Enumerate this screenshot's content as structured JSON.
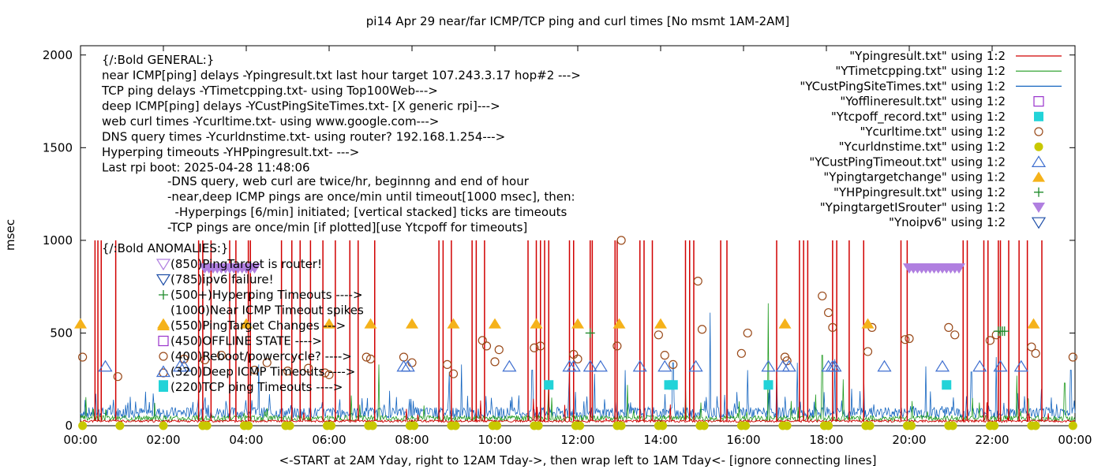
{
  "chart_data": {
    "type": "scatter",
    "title": "pi14 Apr 29  near/far ICMP/TCP ping and curl times [No msmt 1AM-2AM]",
    "xlabel": "<-START at 2AM Yday, right to 12AM Tday->, then wrap left to 1AM Tday<- [ignore connecting lines]",
    "ylabel": "msec",
    "xlim": [
      0,
      24
    ],
    "ylim": [
      0,
      2050
    ],
    "x_ticks": [
      "00:00",
      "02:00",
      "04:00",
      "06:00",
      "08:00",
      "10:00",
      "12:00",
      "14:00",
      "16:00",
      "18:00",
      "20:00",
      "22:00",
      "00:00"
    ],
    "y_ticks": [
      "0",
      "500",
      "1000",
      "1500",
      "2000"
    ],
    "legend_position": "top-right",
    "annotations": {
      "general": [
        "{/:Bold GENERAL:}",
        "near ICMP[ping] delays -Ypingresult.txt last hour target 107.243.3.17 hop#2 --->",
        "TCP ping delays -YTimetcpping.txt- using Top100Web--->",
        "deep ICMP[ping] delays -YCustPingSiteTimes.txt- [X generic rpi]--->",
        "web curl times -Ycurltime.txt- using www.google.com--->",
        "DNS query times -Ycurldnstime.txt- using router? 192.168.1.254--->",
        "Hyperping timeouts -YHPpingresult.txt- --->",
        "Last rpi boot: 2025-04-28 11:48:06"
      ],
      "notes": [
        "-DNS query, web curl are twice/hr, beginnng and end of hour",
        "-near,deep ICMP pings are once/min until timeout[1000 msec], then:",
        "  -Hyperpings [6/min] initiated; [vertical stacked] ticks are timeouts",
        "-TCP pings are once/min [if plotted][use Ytcpoff for timeouts]"
      ],
      "anomalies_title": "{/:Bold ANOMALIES:}",
      "anomalies": [
        {
          "text": "(850)PingTarget is router!",
          "color": "#b07fe0",
          "symbol": "tri-down-open"
        },
        {
          "text": "(785)ipv6 failure!",
          "color": "#1f4fa8",
          "symbol": "tri-down-open"
        },
        {
          "text": "(500+)Hyperping Timeouts ---->",
          "color": "#1e8b2a",
          "symbol": "plus"
        },
        {
          "text": "(1000)Near ICMP Timeout spikes",
          "color": "",
          "symbol": "none"
        },
        {
          "text": "(550)PingTarget Changes --->",
          "color": "#f5b21a",
          "symbol": "tri-up-filled"
        },
        {
          "text": "(450)OFFLINE STATE ---->",
          "color": "#9933cc",
          "symbol": "square-open"
        },
        {
          "text": "(400)Reboot/powercycle? ---->",
          "color": "#9a4a1a",
          "symbol": "circle-open"
        },
        {
          "text": "(320)Deep ICMP Timeouts ---->",
          "color": "#3f6fd0",
          "symbol": "tri-up-open"
        },
        {
          "text": "(220)TCP ping Timeouts ---->",
          "color": "#22d3d8",
          "symbol": "square-filled"
        }
      ]
    },
    "series": [
      {
        "name": "\"Ypingresult.txt\" using 1:2",
        "color": "#d10000",
        "style": "line",
        "baseline_ms": 25,
        "spike_x": [
          0.35,
          0.42,
          0.5,
          0.85,
          2.85,
          2.95,
          3.15,
          3.6,
          3.75,
          4.05,
          4.1,
          4.85,
          5.1,
          5.3,
          5.55,
          5.85,
          6.15,
          6.5,
          6.7,
          7.1,
          8.65,
          8.75,
          8.95,
          9.45,
          9.55,
          9.75,
          10.8,
          11.0,
          11.1,
          11.2,
          11.3,
          11.8,
          11.9,
          12.3,
          12.35,
          12.9,
          12.95,
          13.5,
          13.6,
          13.8,
          14.6,
          14.7,
          14.8,
          15.45,
          15.6,
          16.8,
          17.35,
          17.45,
          17.55,
          18.15,
          18.25,
          18.55,
          18.9,
          19.8,
          19.95,
          21.3,
          21.4,
          21.8,
          21.9,
          22.15,
          22.2,
          22.4,
          22.65,
          22.85,
          23.2
        ],
        "spike_y": 1000
      },
      {
        "name": "\"YTimetcpping.txt\" using 1:2",
        "color": "#1e9a1e",
        "style": "line",
        "baseline_ms": 40,
        "peaks": [
          [
            7.2,
            330
          ],
          [
            11.3,
            240
          ],
          [
            13.2,
            220
          ],
          [
            14.6,
            190
          ],
          [
            16.6,
            660
          ],
          [
            17.9,
            380
          ],
          [
            18.4,
            250
          ],
          [
            22.6,
            270
          ],
          [
            23.75,
            230
          ]
        ]
      },
      {
        "name": "\"YCustPingSiteTimes.txt\" using 1:2",
        "color": "#1565c0",
        "style": "line",
        "baseline_ms": 70,
        "peaks": [
          [
            4.3,
            330
          ],
          [
            8.9,
            290
          ],
          [
            9.2,
            330
          ],
          [
            10.9,
            300
          ],
          [
            11.8,
            280
          ],
          [
            12.4,
            280
          ],
          [
            13.15,
            300
          ],
          [
            14.3,
            340
          ],
          [
            15.2,
            610
          ],
          [
            16.1,
            300
          ],
          [
            16.8,
            280
          ],
          [
            17.3,
            340
          ],
          [
            18.2,
            360
          ],
          [
            18.9,
            250
          ],
          [
            20.4,
            320
          ],
          [
            21.5,
            290
          ],
          [
            22.1,
            370
          ],
          [
            23.9,
            300
          ]
        ]
      },
      {
        "name": "\"Yofflineresult.txt\" using 1:2",
        "color": "#9933cc",
        "style": "square-open",
        "points": []
      },
      {
        "name": "\"Ytcpoff_record.txt\" using 1:2",
        "color": "#22d3d8",
        "style": "square-filled",
        "points": [
          [
            2.0,
            220
          ],
          [
            11.3,
            220
          ],
          [
            14.2,
            220
          ],
          [
            14.3,
            220
          ],
          [
            16.6,
            220
          ],
          [
            20.9,
            220
          ]
        ]
      },
      {
        "name": "\"Ycurltime.txt\" using 1:2",
        "color": "#9a4a1a",
        "style": "circle-open",
        "points": [
          [
            0.05,
            370
          ],
          [
            0.9,
            265
          ],
          [
            2.0,
            285
          ],
          [
            2.5,
            360
          ],
          [
            3.0,
            355
          ],
          [
            3.4,
            380
          ],
          [
            4.2,
            300
          ],
          [
            4.5,
            340
          ],
          [
            5.0,
            295
          ],
          [
            5.5,
            310
          ],
          [
            5.9,
            285
          ],
          [
            6.0,
            275
          ],
          [
            6.9,
            370
          ],
          [
            7.0,
            360
          ],
          [
            7.8,
            370
          ],
          [
            8.0,
            340
          ],
          [
            8.85,
            330
          ],
          [
            9.0,
            280
          ],
          [
            9.7,
            460
          ],
          [
            9.8,
            430
          ],
          [
            10.0,
            345
          ],
          [
            10.1,
            410
          ],
          [
            10.95,
            420
          ],
          [
            11.1,
            430
          ],
          [
            11.9,
            385
          ],
          [
            12.0,
            360
          ],
          [
            12.95,
            430
          ],
          [
            13.05,
            1000
          ],
          [
            13.95,
            490
          ],
          [
            14.1,
            380
          ],
          [
            14.3,
            330
          ],
          [
            14.9,
            780
          ],
          [
            15.0,
            520
          ],
          [
            15.95,
            390
          ],
          [
            16.1,
            500
          ],
          [
            17.0,
            370
          ],
          [
            17.05,
            350
          ],
          [
            17.9,
            700
          ],
          [
            18.05,
            610
          ],
          [
            18.15,
            530
          ],
          [
            19.0,
            400
          ],
          [
            19.1,
            530
          ],
          [
            19.9,
            465
          ],
          [
            20.0,
            470
          ],
          [
            20.95,
            530
          ],
          [
            21.1,
            490
          ],
          [
            21.95,
            460
          ],
          [
            22.1,
            490
          ],
          [
            22.95,
            425
          ],
          [
            23.05,
            390
          ],
          [
            23.95,
            370
          ]
        ]
      },
      {
        "name": "\"Ycurldnstime.txt\" using 1:2",
        "color": "#c8c800",
        "style": "circle-filled",
        "points": [
          [
            0.05,
            0
          ],
          [
            0.95,
            0
          ],
          [
            2.0,
            0
          ],
          [
            2.95,
            0
          ],
          [
            3.05,
            0
          ],
          [
            3.95,
            0
          ],
          [
            4.05,
            0
          ],
          [
            4.95,
            0
          ],
          [
            5.05,
            0
          ],
          [
            5.95,
            0
          ],
          [
            6.05,
            0
          ],
          [
            6.95,
            0
          ],
          [
            7.05,
            0
          ],
          [
            7.95,
            0
          ],
          [
            8.05,
            0
          ],
          [
            8.95,
            0
          ],
          [
            9.05,
            0
          ],
          [
            9.95,
            0
          ],
          [
            10.05,
            0
          ],
          [
            10.95,
            0
          ],
          [
            11.05,
            0
          ],
          [
            11.95,
            0
          ],
          [
            12.05,
            0
          ],
          [
            12.95,
            0
          ],
          [
            13.05,
            0
          ],
          [
            13.95,
            0
          ],
          [
            14.05,
            0
          ],
          [
            14.95,
            0
          ],
          [
            15.05,
            0
          ],
          [
            15.95,
            0
          ],
          [
            16.05,
            0
          ],
          [
            16.95,
            0
          ],
          [
            17.05,
            0
          ],
          [
            17.95,
            0
          ],
          [
            18.05,
            0
          ],
          [
            18.95,
            0
          ],
          [
            19.05,
            0
          ],
          [
            19.95,
            0
          ],
          [
            20.05,
            0
          ],
          [
            20.95,
            0
          ],
          [
            21.05,
            0
          ],
          [
            21.95,
            0
          ],
          [
            22.05,
            0
          ],
          [
            22.95,
            0
          ],
          [
            23.05,
            0
          ],
          [
            23.95,
            0
          ]
        ]
      },
      {
        "name": "\"YCustPingTimeout.txt\" using 1:2",
        "color": "#3f6fd0",
        "style": "tri-up-open",
        "points": [
          [
            0.6,
            320
          ],
          [
            2.4,
            320
          ],
          [
            2.5,
            320
          ],
          [
            7.8,
            320
          ],
          [
            7.9,
            320
          ],
          [
            10.35,
            320
          ],
          [
            11.8,
            320
          ],
          [
            11.9,
            320
          ],
          [
            12.3,
            320
          ],
          [
            12.55,
            320
          ],
          [
            13.5,
            320
          ],
          [
            14.1,
            320
          ],
          [
            14.85,
            320
          ],
          [
            16.6,
            320
          ],
          [
            16.95,
            320
          ],
          [
            17.1,
            320
          ],
          [
            18.05,
            320
          ],
          [
            18.15,
            320
          ],
          [
            18.2,
            320
          ],
          [
            19.4,
            320
          ],
          [
            20.8,
            320
          ],
          [
            21.7,
            320
          ],
          [
            22.2,
            320
          ],
          [
            22.7,
            320
          ]
        ]
      },
      {
        "name": "\"Ypingtargetchange\" using 1:2",
        "color": "#f5b21a",
        "style": "tri-up-filled",
        "points": [
          [
            0.0,
            550
          ],
          [
            2.0,
            550
          ],
          [
            4.0,
            550
          ],
          [
            6.0,
            550
          ],
          [
            7.0,
            550
          ],
          [
            8.0,
            550
          ],
          [
            9.0,
            550
          ],
          [
            10.0,
            550
          ],
          [
            11.0,
            550
          ],
          [
            12.0,
            550
          ],
          [
            13.0,
            550
          ],
          [
            14.0,
            550
          ],
          [
            17.0,
            550
          ],
          [
            19.0,
            550
          ],
          [
            23.0,
            550
          ]
        ]
      },
      {
        "name": "\"YHPpingresult.txt\" using 1:2",
        "color": "#1e8b2a",
        "style": "plus",
        "points": [
          [
            12.3,
            500
          ],
          [
            22.15,
            510
          ],
          [
            22.2,
            510
          ],
          [
            22.25,
            510
          ],
          [
            22.3,
            510
          ]
        ]
      },
      {
        "name": "\"YpingtargetISrouter\" using 1:2",
        "color": "#b07fe0",
        "style": "tri-down-filled",
        "points": [
          [
            3.0,
            850
          ],
          [
            3.1,
            850
          ],
          [
            3.2,
            850
          ],
          [
            3.3,
            850
          ],
          [
            3.4,
            850
          ],
          [
            3.5,
            850
          ],
          [
            3.6,
            850
          ],
          [
            3.7,
            850
          ],
          [
            3.8,
            850
          ],
          [
            3.9,
            850
          ],
          [
            4.0,
            850
          ],
          [
            4.1,
            850
          ],
          [
            4.2,
            850
          ],
          [
            20.0,
            850
          ],
          [
            20.1,
            850
          ],
          [
            20.2,
            850
          ],
          [
            20.3,
            850
          ],
          [
            20.4,
            850
          ],
          [
            20.5,
            850
          ],
          [
            20.6,
            850
          ],
          [
            20.7,
            850
          ],
          [
            20.8,
            850
          ],
          [
            20.9,
            850
          ],
          [
            21.0,
            850
          ],
          [
            21.1,
            850
          ],
          [
            21.2,
            850
          ]
        ]
      },
      {
        "name": "\"Ynoipv6\" using 1:2",
        "color": "#1f4fa8",
        "style": "tri-down-open",
        "points": []
      }
    ]
  }
}
